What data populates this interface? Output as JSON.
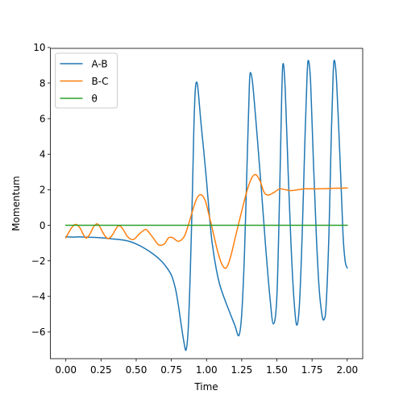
{
  "chart_data": {
    "type": "line",
    "title": "",
    "xlabel": "Time",
    "ylabel": "Momentum",
    "xlim": [
      -0.11,
      2.11
    ],
    "ylim": [
      -7.5,
      9.95
    ],
    "x_ticks": [
      0.0,
      0.25,
      0.5,
      0.75,
      1.0,
      1.25,
      1.5,
      1.75,
      2.0
    ],
    "x_tick_labels": [
      "0.00",
      "0.25",
      "0.50",
      "0.75",
      "1.00",
      "1.25",
      "1.50",
      "1.75",
      "2.00"
    ],
    "y_ticks": [
      -6,
      -4,
      -2,
      0,
      2,
      4,
      6,
      8,
      10
    ],
    "y_tick_labels": [
      "−6",
      "−4",
      "−2",
      "0",
      "2",
      "4",
      "6",
      "8",
      "10"
    ],
    "grid": false,
    "legend_position": "upper-left",
    "series": [
      {
        "name": "A-B",
        "color": "#1f77b4",
        "points": [
          [
            0.0,
            -0.65
          ],
          [
            0.05,
            -0.66
          ],
          [
            0.1,
            -0.65
          ],
          [
            0.15,
            -0.67
          ],
          [
            0.2,
            -0.68
          ],
          [
            0.25,
            -0.7
          ],
          [
            0.3,
            -0.74
          ],
          [
            0.35,
            -0.78
          ],
          [
            0.4,
            -0.82
          ],
          [
            0.45,
            -0.9
          ],
          [
            0.5,
            -1.05
          ],
          [
            0.55,
            -1.25
          ],
          [
            0.6,
            -1.5
          ],
          [
            0.65,
            -1.8
          ],
          [
            0.7,
            -2.2
          ],
          [
            0.75,
            -2.8
          ],
          [
            0.78,
            -3.6
          ],
          [
            0.8,
            -4.5
          ],
          [
            0.82,
            -5.6
          ],
          [
            0.84,
            -6.6
          ],
          [
            0.855,
            -7.0
          ],
          [
            0.87,
            -5.8
          ],
          [
            0.885,
            -2.5
          ],
          [
            0.9,
            2.0
          ],
          [
            0.91,
            5.5
          ],
          [
            0.92,
            7.6
          ],
          [
            0.93,
            8.05
          ],
          [
            0.94,
            7.6
          ],
          [
            0.96,
            5.8
          ],
          [
            0.98,
            4.2
          ],
          [
            1.0,
            2.5
          ],
          [
            1.02,
            0.6
          ],
          [
            1.04,
            -1.0
          ],
          [
            1.07,
            -2.5
          ],
          [
            1.1,
            -3.5
          ],
          [
            1.15,
            -4.6
          ],
          [
            1.2,
            -5.6
          ],
          [
            1.23,
            -6.2
          ],
          [
            1.25,
            -5.0
          ],
          [
            1.27,
            -1.5
          ],
          [
            1.29,
            4.0
          ],
          [
            1.305,
            8.0
          ],
          [
            1.315,
            8.55
          ],
          [
            1.33,
            7.8
          ],
          [
            1.36,
            5.0
          ],
          [
            1.39,
            2.0
          ],
          [
            1.42,
            -1.2
          ],
          [
            1.45,
            -4.0
          ],
          [
            1.475,
            -5.55
          ],
          [
            1.5,
            -4.0
          ],
          [
            1.52,
            2.0
          ],
          [
            1.535,
            7.5
          ],
          [
            1.545,
            9.1
          ],
          [
            1.56,
            7.5
          ],
          [
            1.58,
            3.0
          ],
          [
            1.6,
            -1.0
          ],
          [
            1.62,
            -4.0
          ],
          [
            1.64,
            -5.6
          ],
          [
            1.66,
            -4.5
          ],
          [
            1.68,
            -0.5
          ],
          [
            1.7,
            5.0
          ],
          [
            1.715,
            8.5
          ],
          [
            1.725,
            9.25
          ],
          [
            1.74,
            8.0
          ],
          [
            1.76,
            3.5
          ],
          [
            1.78,
            -0.5
          ],
          [
            1.8,
            -3.5
          ],
          [
            1.82,
            -5.0
          ],
          [
            1.835,
            -5.3
          ],
          [
            1.85,
            -4.5
          ],
          [
            1.87,
            -0.5
          ],
          [
            1.885,
            4.5
          ],
          [
            1.9,
            8.5
          ],
          [
            1.91,
            9.25
          ],
          [
            1.925,
            8.0
          ],
          [
            1.95,
            3.5
          ],
          [
            1.97,
            -0.5
          ],
          [
            1.985,
            -2.0
          ],
          [
            2.0,
            -2.4
          ]
        ]
      },
      {
        "name": "B-C",
        "color": "#ff7f0e",
        "points": [
          [
            0.0,
            -0.7
          ],
          [
            0.04,
            -0.15
          ],
          [
            0.07,
            0.05
          ],
          [
            0.1,
            -0.15
          ],
          [
            0.14,
            -0.7
          ],
          [
            0.17,
            -0.5
          ],
          [
            0.2,
            -0.05
          ],
          [
            0.23,
            0.05
          ],
          [
            0.27,
            -0.5
          ],
          [
            0.3,
            -0.75
          ],
          [
            0.33,
            -0.55
          ],
          [
            0.37,
            -0.05
          ],
          [
            0.4,
            -0.15
          ],
          [
            0.44,
            -0.65
          ],
          [
            0.48,
            -0.8
          ],
          [
            0.52,
            -0.5
          ],
          [
            0.56,
            -0.25
          ],
          [
            0.58,
            -0.3
          ],
          [
            0.62,
            -0.7
          ],
          [
            0.66,
            -1.1
          ],
          [
            0.7,
            -1.05
          ],
          [
            0.73,
            -0.7
          ],
          [
            0.76,
            -0.7
          ],
          [
            0.8,
            -0.9
          ],
          [
            0.84,
            -0.65
          ],
          [
            0.87,
            0.0
          ],
          [
            0.9,
            0.8
          ],
          [
            0.93,
            1.5
          ],
          [
            0.96,
            1.72
          ],
          [
            0.99,
            1.4
          ],
          [
            1.02,
            0.5
          ],
          [
            1.05,
            -0.5
          ],
          [
            1.08,
            -1.5
          ],
          [
            1.11,
            -2.2
          ],
          [
            1.14,
            -2.4
          ],
          [
            1.17,
            -1.8
          ],
          [
            1.21,
            -0.5
          ],
          [
            1.25,
            0.8
          ],
          [
            1.29,
            2.0
          ],
          [
            1.32,
            2.65
          ],
          [
            1.35,
            2.85
          ],
          [
            1.38,
            2.5
          ],
          [
            1.41,
            1.85
          ],
          [
            1.44,
            1.7
          ],
          [
            1.48,
            1.85
          ],
          [
            1.52,
            2.05
          ],
          [
            1.56,
            2.0
          ],
          [
            1.6,
            1.95
          ],
          [
            1.65,
            2.0
          ],
          [
            1.7,
            2.05
          ],
          [
            1.8,
            2.05
          ],
          [
            1.9,
            2.08
          ],
          [
            2.0,
            2.1
          ]
        ]
      },
      {
        "name": "θ",
        "color": "#2ca02c",
        "points": [
          [
            0.0,
            0.0
          ],
          [
            2.0,
            0.0
          ]
        ]
      }
    ]
  }
}
